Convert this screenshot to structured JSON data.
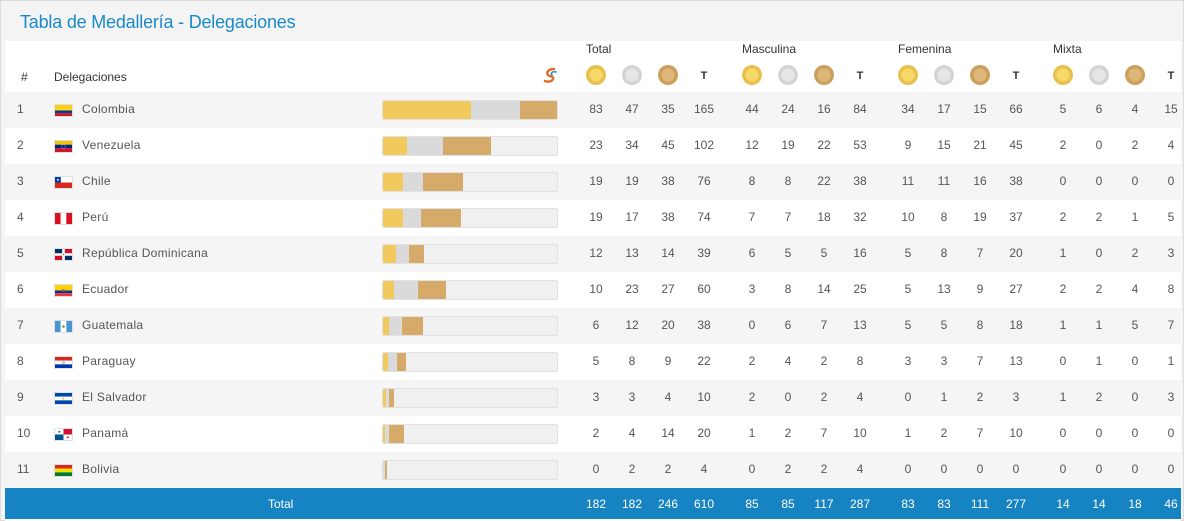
{
  "title": "Tabla de Medallería - Delegaciones",
  "headers": {
    "rank": "#",
    "delegations": "Delegaciones",
    "groups": [
      "Total",
      "Masculina",
      "Femenina",
      "Mixta"
    ],
    "total_letter": "T"
  },
  "colors": {
    "accent": "#1a8ac6",
    "footer": "#1683c2",
    "gold": "#f2c95d",
    "silver": "#dadada",
    "bronze": "#d6ab69"
  },
  "rows": [
    {
      "rank": "1",
      "country": "Colombia",
      "flag": "colombia-flag-icon",
      "total": [
        "83",
        "47",
        "35",
        "165"
      ],
      "masc": [
        "44",
        "24",
        "16",
        "84"
      ],
      "fem": [
        "34",
        "17",
        "15",
        "66"
      ],
      "mix": [
        "5",
        "6",
        "4",
        "15"
      ]
    },
    {
      "rank": "2",
      "country": "Venezuela",
      "flag": "venezuela-flag-icon",
      "total": [
        "23",
        "34",
        "45",
        "102"
      ],
      "masc": [
        "12",
        "19",
        "22",
        "53"
      ],
      "fem": [
        "9",
        "15",
        "21",
        "45"
      ],
      "mix": [
        "2",
        "0",
        "2",
        "4"
      ]
    },
    {
      "rank": "3",
      "country": "Chile",
      "flag": "chile-flag-icon",
      "total": [
        "19",
        "19",
        "38",
        "76"
      ],
      "masc": [
        "8",
        "8",
        "22",
        "38"
      ],
      "fem": [
        "11",
        "11",
        "16",
        "38"
      ],
      "mix": [
        "0",
        "0",
        "0",
        "0"
      ]
    },
    {
      "rank": "4",
      "country": "Perú",
      "flag": "peru-flag-icon",
      "total": [
        "19",
        "17",
        "38",
        "74"
      ],
      "masc": [
        "7",
        "7",
        "18",
        "32"
      ],
      "fem": [
        "10",
        "8",
        "19",
        "37"
      ],
      "mix": [
        "2",
        "2",
        "1",
        "5"
      ]
    },
    {
      "rank": "5",
      "country": "República Dominicana",
      "flag": "dominican-republic-flag-icon",
      "total": [
        "12",
        "13",
        "14",
        "39"
      ],
      "masc": [
        "6",
        "5",
        "5",
        "16"
      ],
      "fem": [
        "5",
        "8",
        "7",
        "20"
      ],
      "mix": [
        "1",
        "0",
        "2",
        "3"
      ]
    },
    {
      "rank": "6",
      "country": "Ecuador",
      "flag": "ecuador-flag-icon",
      "total": [
        "10",
        "23",
        "27",
        "60"
      ],
      "masc": [
        "3",
        "8",
        "14",
        "25"
      ],
      "fem": [
        "5",
        "13",
        "9",
        "27"
      ],
      "mix": [
        "2",
        "2",
        "4",
        "8"
      ]
    },
    {
      "rank": "7",
      "country": "Guatemala",
      "flag": "guatemala-flag-icon",
      "total": [
        "6",
        "12",
        "20",
        "38"
      ],
      "masc": [
        "0",
        "6",
        "7",
        "13"
      ],
      "fem": [
        "5",
        "5",
        "8",
        "18"
      ],
      "mix": [
        "1",
        "1",
        "5",
        "7"
      ]
    },
    {
      "rank": "8",
      "country": "Paraguay",
      "flag": "paraguay-flag-icon",
      "total": [
        "5",
        "8",
        "9",
        "22"
      ],
      "masc": [
        "2",
        "4",
        "2",
        "8"
      ],
      "fem": [
        "3",
        "3",
        "7",
        "13"
      ],
      "mix": [
        "0",
        "1",
        "0",
        "1"
      ]
    },
    {
      "rank": "9",
      "country": "El Salvador",
      "flag": "el-salvador-flag-icon",
      "total": [
        "3",
        "3",
        "4",
        "10"
      ],
      "masc": [
        "2",
        "0",
        "2",
        "4"
      ],
      "fem": [
        "0",
        "1",
        "2",
        "3"
      ],
      "mix": [
        "1",
        "2",
        "0",
        "3"
      ]
    },
    {
      "rank": "10",
      "country": "Panamá",
      "flag": "panama-flag-icon",
      "total": [
        "2",
        "4",
        "14",
        "20"
      ],
      "masc": [
        "1",
        "2",
        "7",
        "10"
      ],
      "fem": [
        "1",
        "2",
        "7",
        "10"
      ],
      "mix": [
        "0",
        "0",
        "0",
        "0"
      ]
    },
    {
      "rank": "11",
      "country": "Bolivia",
      "flag": "bolivia-flag-icon",
      "total": [
        "0",
        "2",
        "2",
        "4"
      ],
      "masc": [
        "0",
        "2",
        "2",
        "4"
      ],
      "fem": [
        "0",
        "0",
        "0",
        "0"
      ],
      "mix": [
        "0",
        "0",
        "0",
        "0"
      ]
    }
  ],
  "footer": {
    "label": "Total",
    "total": [
      "182",
      "182",
      "246",
      "610"
    ],
    "masc": [
      "85",
      "85",
      "117",
      "287"
    ],
    "fem": [
      "83",
      "83",
      "111",
      "277"
    ],
    "mix": [
      "14",
      "14",
      "18",
      "46"
    ]
  }
}
